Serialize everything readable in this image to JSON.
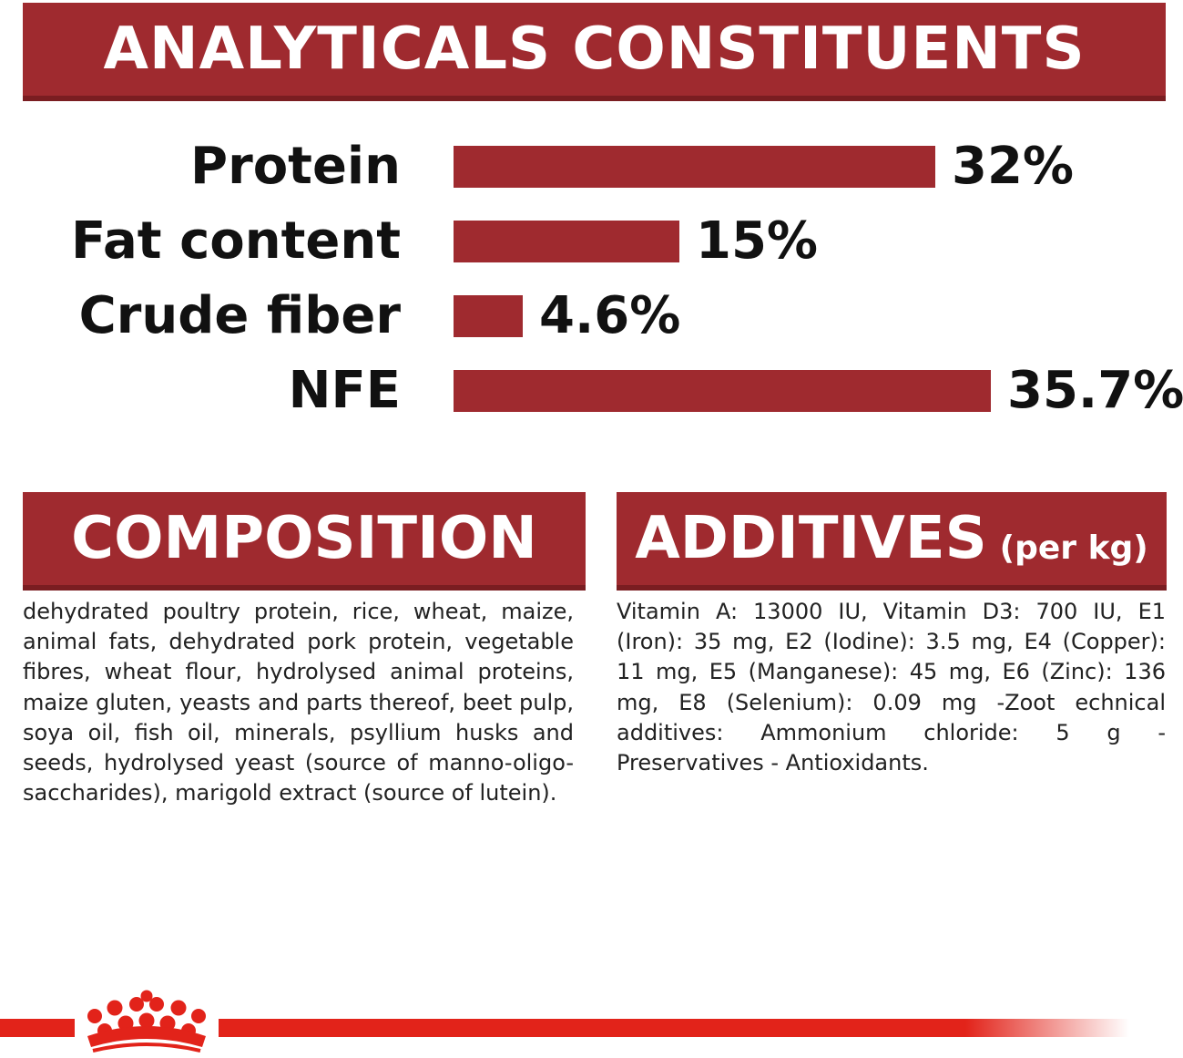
{
  "title": "ANALYTICALS CONSTITUENTS",
  "brand_color": "#9f2a2f",
  "footer_color": "#e2231a",
  "chart_data": {
    "type": "bar",
    "orientation": "horizontal",
    "categories": [
      "Protein",
      "Fat content",
      "Crude fiber",
      "NFE"
    ],
    "values": [
      32,
      15,
      4.6,
      35.7
    ],
    "value_labels": [
      "32%",
      "15%",
      "4.6%",
      "35.7%"
    ],
    "unit": "%",
    "xlim": [
      0,
      35.7
    ],
    "grid": false
  },
  "composition": {
    "heading": "COMPOSITION",
    "text": "dehydrated poultry protein, rice, wheat, maize, animal fats, dehydrated pork protein, vegetable fibres, wheat flour, hydrolysed animal proteins, maize gluten, yeasts and parts thereof, beet pulp, soya oil, fish oil, minerals, psyllium husks and seeds, hydrolysed yeast (source of manno-oligo-saccharides), marigold extract (source of lutein)."
  },
  "additives": {
    "heading": "ADDITIVES",
    "unit": "(per kg)",
    "text": "Vitamin A: 13000 IU, Vitamin D3: 700 IU, E1 (Iron): 35 mg, E2 (Iodine): 3.5 mg, E4 (Copper): 11 mg, E5 (Manganese): 45 mg, E6 (Zinc): 136 mg, E8 (Selenium): 0.09 mg -Zoot echnical additives: Ammonium chloride: 5 g - Preservatives - Antioxidants."
  },
  "footer": {
    "logo_icon": "crown-logo-icon"
  }
}
